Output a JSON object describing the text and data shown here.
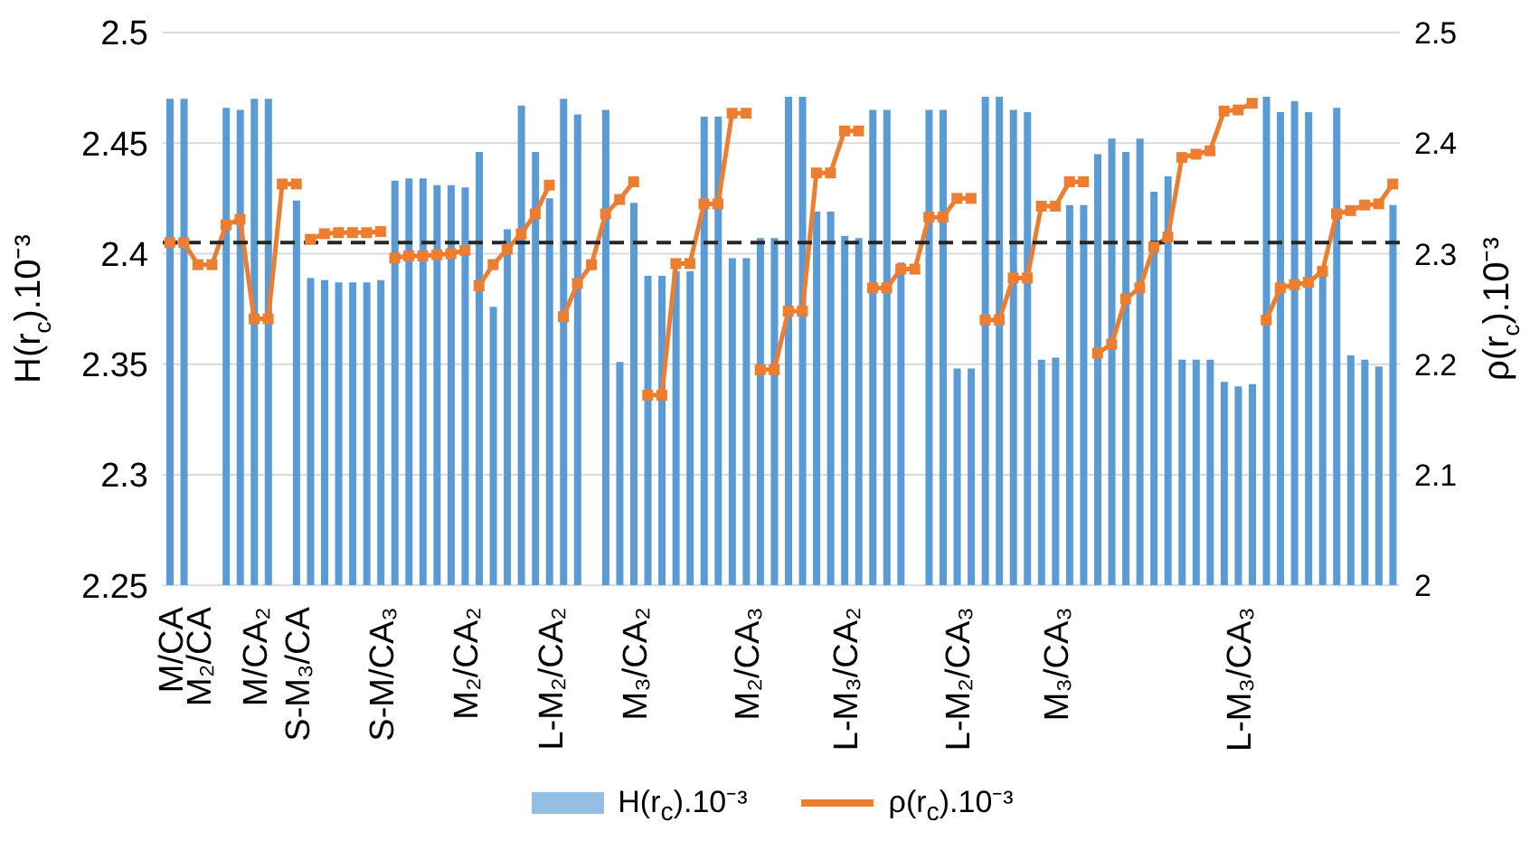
{
  "chart_data": {
    "type": "bar",
    "xlabel": null,
    "ylabel": "H(r$_{c}$).10⁻³",
    "y2label": "ρ(r$_{c}$).10⁻³",
    "categories": [
      "M/CA",
      null,
      "M₂/CA",
      null,
      null,
      null,
      "M/CA₂",
      null,
      null,
      "S-M₃/CA",
      null,
      null,
      null,
      null,
      null,
      "S-M/CA₃",
      null,
      null,
      null,
      null,
      null,
      "M₂/CA₂",
      null,
      null,
      null,
      null,
      null,
      "L-M₂/CA₂",
      null,
      null,
      null,
      null,
      null,
      "M₃/CA₂",
      null,
      null,
      null,
      null,
      null,
      null,
      null,
      "M₂/CA₃",
      null,
      null,
      null,
      null,
      null,
      null,
      "L-M₃/CA₂",
      null,
      null,
      null,
      null,
      null,
      null,
      null,
      "L-M₂/CA₃",
      null,
      null,
      null,
      null,
      null,
      null,
      "M₃/CA₃",
      null,
      null,
      null,
      null,
      null,
      null,
      null,
      null,
      null,
      null,
      null,
      null,
      "L-M₃/CA₃",
      null,
      null,
      null,
      null,
      null,
      null,
      null,
      null,
      null,
      null,
      null
    ],
    "series": [
      {
        "name": "H(r$_{c}$).10⁻³",
        "color": "#5b9bd5",
        "values": [
          2.47,
          2.47,
          null,
          null,
          2.466,
          2.465,
          2.47,
          2.47,
          null,
          2.424,
          2.389,
          2.388,
          2.387,
          2.387,
          2.387,
          2.388,
          2.433,
          2.434,
          2.434,
          2.431,
          2.431,
          2.43,
          2.446,
          2.376,
          2.411,
          2.467,
          2.446,
          2.425,
          2.47,
          2.463,
          null,
          2.465,
          2.351,
          2.423,
          2.39,
          2.39,
          2.392,
          2.392,
          2.462,
          2.462,
          2.398,
          2.398,
          2.407,
          2.407,
          2.471,
          2.471,
          2.419,
          2.419,
          2.408,
          2.407,
          2.465,
          2.465,
          2.396,
          null,
          2.465,
          2.465,
          2.348,
          2.348,
          2.471,
          2.471,
          2.465,
          2.464,
          2.352,
          2.353,
          2.422,
          2.422,
          2.445,
          2.452,
          2.446,
          2.452,
          2.428,
          2.435,
          2.352,
          2.352,
          2.352,
          2.342,
          2.34,
          2.341,
          2.471,
          2.464,
          2.469,
          2.464,
          2.392,
          2.466,
          2.354,
          2.352,
          2.349,
          2.422
        ]
      },
      {
        "name": "ρ(r$_{c}$).10⁻³",
        "type": "line",
        "axis": "y2",
        "color": "#ed7d31",
        "values": [
          2.31,
          2.31,
          2.29,
          2.29,
          2.326,
          2.331,
          2.241,
          2.241,
          2.363,
          2.363,
          null,
          null,
          null,
          null,
          null,
          null,
          null,
          null,
          null,
          null,
          null,
          null,
          null,
          null,
          null,
          null,
          null,
          null,
          null,
          null,
          null,
          null,
          null,
          null,
          null,
          null,
          null,
          null,
          null,
          null,
          null,
          null,
          null,
          null,
          null,
          null,
          null,
          null,
          null,
          null,
          null,
          null,
          null,
          null,
          null,
          null,
          null,
          null,
          null,
          null,
          null,
          null,
          null,
          null,
          null,
          null,
          null,
          null,
          null,
          null,
          null,
          null,
          null,
          null,
          null,
          null,
          null,
          null,
          null,
          null,
          null,
          null,
          null,
          null,
          null,
          null,
          null,
          null
        ]
      },
      {
        "type": "line",
        "axis": "y2",
        "color": "#ed7d31",
        "values": [
          null,
          null,
          null,
          null,
          null,
          null,
          null,
          null,
          null,
          null,
          2.313,
          2.318,
          2.319,
          2.319,
          2.319,
          2.32,
          null,
          null,
          null,
          null,
          null,
          null,
          null,
          null,
          null,
          null,
          null,
          null,
          null,
          null,
          null,
          null,
          null,
          null,
          null,
          null,
          null,
          null,
          null,
          null,
          null,
          null,
          null,
          null,
          null,
          null,
          null,
          null,
          null,
          null,
          null,
          null,
          null,
          null,
          null,
          null,
          null,
          null,
          null,
          null,
          null,
          null,
          null,
          null,
          null,
          null,
          null,
          null,
          null,
          null,
          null,
          null,
          null,
          null,
          null,
          null,
          null,
          null,
          null,
          null,
          null,
          null,
          null,
          null,
          null,
          null,
          null,
          null
        ]
      },
      {
        "type": "line",
        "axis": "y2",
        "color": "#ed7d31",
        "values": [
          null,
          null,
          null,
          null,
          null,
          null,
          null,
          null,
          null,
          null,
          null,
          null,
          null,
          null,
          null,
          null,
          2.296,
          2.298,
          2.298,
          2.299,
          2.3,
          2.303,
          null,
          null,
          null,
          null,
          null,
          null,
          null,
          null,
          null,
          null,
          null,
          null,
          null,
          null,
          null,
          null,
          null,
          null,
          null,
          null,
          null,
          null,
          null,
          null,
          null,
          null,
          null,
          null,
          null,
          null,
          null,
          null,
          null,
          null,
          null,
          null,
          null,
          null,
          null,
          null,
          null,
          null,
          null,
          null,
          null,
          null,
          null,
          null,
          null,
          null,
          null,
          null,
          null,
          null,
          null,
          null,
          null,
          null,
          null,
          null,
          null,
          null,
          null,
          null,
          null,
          null
        ]
      },
      {
        "type": "line",
        "axis": "y2",
        "color": "#ed7d31",
        "values": [
          null,
          null,
          null,
          null,
          null,
          null,
          null,
          null,
          null,
          null,
          null,
          null,
          null,
          null,
          null,
          null,
          null,
          null,
          null,
          null,
          null,
          null,
          2.271,
          2.29,
          2.304,
          2.318,
          2.336,
          2.362,
          null,
          null,
          null,
          null,
          null,
          null,
          null,
          null,
          null,
          null,
          null,
          null,
          null,
          null,
          null,
          null,
          null,
          null,
          null,
          null,
          null,
          null,
          null,
          null,
          null,
          null,
          null,
          null,
          null,
          null,
          null,
          null,
          null,
          null,
          null,
          null,
          null,
          null,
          null,
          null,
          null,
          null,
          null,
          null,
          null,
          null,
          null,
          null,
          null,
          null,
          null,
          null,
          null,
          null,
          null,
          null,
          null,
          null,
          null,
          null
        ]
      },
      {
        "type": "line",
        "axis": "y2",
        "color": "#ed7d31",
        "values": [
          null,
          null,
          null,
          null,
          null,
          null,
          null,
          null,
          null,
          null,
          null,
          null,
          null,
          null,
          null,
          null,
          null,
          null,
          null,
          null,
          null,
          null,
          null,
          null,
          null,
          null,
          null,
          null,
          2.243,
          2.273,
          2.29,
          2.336,
          2.349,
          2.365,
          null,
          null,
          null,
          null,
          null,
          null,
          null,
          null,
          null,
          null,
          null,
          null,
          null,
          null,
          null,
          null,
          null,
          null,
          null,
          null,
          null,
          null,
          null,
          null,
          null,
          null,
          null,
          null,
          null,
          null,
          null,
          null,
          null,
          null,
          null,
          null,
          null,
          null,
          null,
          null,
          null,
          null,
          null,
          null,
          null,
          null,
          null,
          null,
          null,
          null,
          null,
          null,
          null,
          null
        ]
      },
      {
        "type": "line",
        "axis": "y2",
        "color": "#ed7d31",
        "values": [
          null,
          null,
          null,
          null,
          null,
          null,
          null,
          null,
          null,
          null,
          null,
          null,
          null,
          null,
          null,
          null,
          null,
          null,
          null,
          null,
          null,
          null,
          null,
          null,
          null,
          null,
          null,
          null,
          null,
          null,
          null,
          null,
          null,
          null,
          2.172,
          2.172,
          2.291,
          2.291,
          2.345,
          2.345,
          2.427,
          2.427,
          null,
          null,
          null,
          null,
          null,
          null,
          null,
          null,
          null,
          null,
          null,
          null,
          null,
          null,
          null,
          null,
          null,
          null,
          null,
          null,
          null,
          null,
          null,
          null,
          null,
          null,
          null,
          null,
          null,
          null,
          null,
          null,
          null,
          null,
          null,
          null,
          null,
          null,
          null,
          null,
          null,
          null,
          null,
          null,
          null,
          null
        ]
      },
      {
        "type": "line",
        "axis": "y2",
        "color": "#ed7d31",
        "values": [
          null,
          null,
          null,
          null,
          null,
          null,
          null,
          null,
          null,
          null,
          null,
          null,
          null,
          null,
          null,
          null,
          null,
          null,
          null,
          null,
          null,
          null,
          null,
          null,
          null,
          null,
          null,
          null,
          null,
          null,
          null,
          null,
          null,
          null,
          null,
          null,
          null,
          null,
          null,
          null,
          null,
          null,
          2.195,
          2.195,
          2.248,
          2.248,
          2.373,
          2.373,
          2.411,
          2.411,
          null,
          null,
          null,
          null,
          null,
          null,
          null,
          null,
          null,
          null,
          null,
          null,
          null,
          null,
          null,
          null,
          null,
          null,
          null,
          null,
          null,
          null,
          null,
          null,
          null,
          null,
          null,
          null,
          null,
          null,
          null,
          null,
          null,
          null,
          null,
          null,
          null,
          null
        ]
      },
      {
        "type": "line",
        "axis": "y2",
        "color": "#ed7d31",
        "values": [
          null,
          null,
          null,
          null,
          null,
          null,
          null,
          null,
          null,
          null,
          null,
          null,
          null,
          null,
          null,
          null,
          null,
          null,
          null,
          null,
          null,
          null,
          null,
          null,
          null,
          null,
          null,
          null,
          null,
          null,
          null,
          null,
          null,
          null,
          null,
          null,
          null,
          null,
          null,
          null,
          null,
          null,
          null,
          null,
          null,
          null,
          null,
          null,
          null,
          null,
          2.269,
          2.269,
          2.286,
          2.286,
          2.333,
          2.333,
          2.35,
          2.35,
          null,
          null,
          null,
          null,
          null,
          null,
          null,
          null,
          null,
          null,
          null,
          null,
          null,
          null,
          null,
          null,
          null,
          null,
          null,
          null,
          null,
          null,
          null,
          null,
          null,
          null,
          null,
          null,
          null,
          null
        ]
      },
      {
        "type": "line",
        "axis": "y2",
        "color": "#ed7d31",
        "values": [
          null,
          null,
          null,
          null,
          null,
          null,
          null,
          null,
          null,
          null,
          null,
          null,
          null,
          null,
          null,
          null,
          null,
          null,
          null,
          null,
          null,
          null,
          null,
          null,
          null,
          null,
          null,
          null,
          null,
          null,
          null,
          null,
          null,
          null,
          null,
          null,
          null,
          null,
          null,
          null,
          null,
          null,
          null,
          null,
          null,
          null,
          null,
          null,
          null,
          null,
          null,
          null,
          null,
          null,
          null,
          null,
          null,
          null,
          2.24,
          2.24,
          2.278,
          2.278,
          2.343,
          2.343,
          2.365,
          2.365,
          null,
          null,
          null,
          null,
          null,
          null,
          null,
          null,
          null,
          null,
          null,
          null,
          null,
          null,
          null,
          null,
          null,
          null,
          null,
          null,
          null,
          null
        ]
      },
      {
        "type": "line",
        "axis": "y2",
        "color": "#ed7d31",
        "values": [
          null,
          null,
          null,
          null,
          null,
          null,
          null,
          null,
          null,
          null,
          null,
          null,
          null,
          null,
          null,
          null,
          null,
          null,
          null,
          null,
          null,
          null,
          null,
          null,
          null,
          null,
          null,
          null,
          null,
          null,
          null,
          null,
          null,
          null,
          null,
          null,
          null,
          null,
          null,
          null,
          null,
          null,
          null,
          null,
          null,
          null,
          null,
          null,
          null,
          null,
          null,
          null,
          null,
          null,
          null,
          null,
          null,
          null,
          null,
          null,
          null,
          null,
          null,
          null,
          null,
          null,
          2.21,
          2.218,
          2.259,
          2.269,
          2.306,
          2.315,
          2.387,
          2.39,
          2.393,
          2.429,
          2.43,
          2.436,
          null,
          null,
          null,
          null,
          null,
          null,
          null,
          null,
          null,
          null
        ]
      },
      {
        "type": "line",
        "axis": "y2",
        "color": "#ed7d31",
        "values": [
          null,
          null,
          null,
          null,
          null,
          null,
          null,
          null,
          null,
          null,
          null,
          null,
          null,
          null,
          null,
          null,
          null,
          null,
          null,
          null,
          null,
          null,
          null,
          null,
          null,
          null,
          null,
          null,
          null,
          null,
          null,
          null,
          null,
          null,
          null,
          null,
          null,
          null,
          null,
          null,
          null,
          null,
          null,
          null,
          null,
          null,
          null,
          null,
          null,
          null,
          null,
          null,
          null,
          null,
          null,
          null,
          null,
          null,
          null,
          null,
          null,
          null,
          null,
          null,
          null,
          null,
          null,
          null,
          null,
          null,
          null,
          null,
          null,
          null,
          null,
          null,
          null,
          null,
          2.24,
          2.269,
          2.272,
          2.274,
          2.284,
          2.336,
          2.339,
          2.344,
          2.345,
          2.363
        ]
      }
    ],
    "ylim": [
      2.25,
      2.5
    ],
    "yticks": [
      2.25,
      2.3,
      2.35,
      2.4,
      2.45,
      2.5
    ],
    "y2lim": [
      2,
      2.5
    ],
    "y2ticks": [
      2,
      2.1,
      2.2,
      2.3,
      2.4,
      2.5
    ],
    "ref_lines": [
      {
        "axis": "y",
        "value": 2.405,
        "color": "#262626",
        "line_style": "dashed"
      }
    ],
    "grid": "y",
    "legend": "bottom",
    "marker": "square"
  }
}
